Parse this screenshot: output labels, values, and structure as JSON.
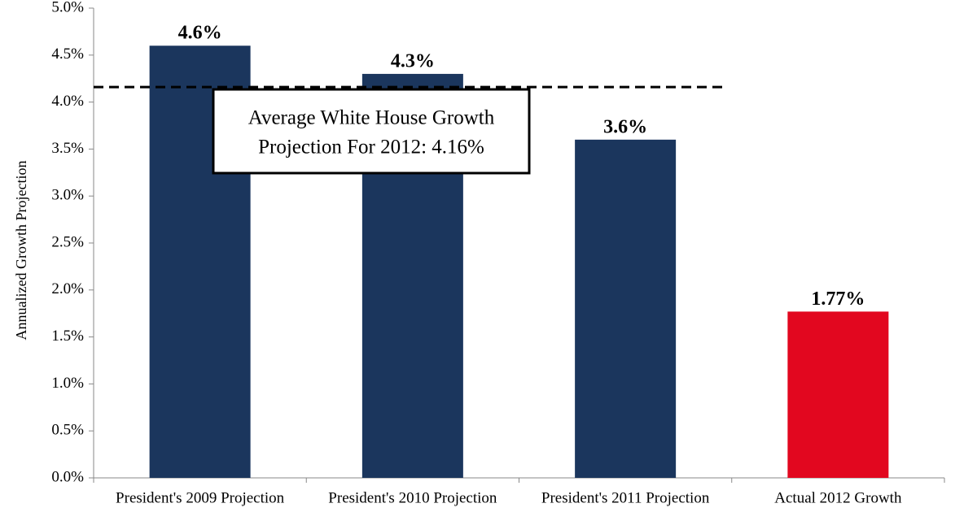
{
  "chart_data": {
    "type": "bar",
    "y_axis_label": "Annualized Growth Projection",
    "categories": [
      "President's 2009 Projection",
      "President's 2010 Projection",
      "President's 2011 Projection",
      "Actual 2012 Growth"
    ],
    "values": [
      4.6,
      4.3,
      3.6,
      1.77
    ],
    "value_labels": [
      "4.6%",
      "4.3%",
      "3.6%",
      "1.77%"
    ],
    "colors": [
      "#1b365d",
      "#1b365d",
      "#1b365d",
      "#e2071f"
    ],
    "ylim": [
      0,
      5
    ],
    "yticks": [
      {
        "value": 0,
        "label": "0.0%"
      },
      {
        "value": 0.5,
        "label": "0.5%"
      },
      {
        "value": 1,
        "label": "1.0%"
      },
      {
        "value": 1.5,
        "label": "1.5%"
      },
      {
        "value": 2,
        "label": "2.0%"
      },
      {
        "value": 2.5,
        "label": "2.5%"
      },
      {
        "value": 3,
        "label": "3.0%"
      },
      {
        "value": 3.5,
        "label": "3.5%"
      },
      {
        "value": 4,
        "label": "4.0%"
      },
      {
        "value": 4.5,
        "label": "4.5%"
      },
      {
        "value": 5,
        "label": "5.0%"
      }
    ],
    "reference_line": {
      "value": 4.16,
      "label_lines": [
        "Average White House Growth",
        "Projection For 2012: 4.16%"
      ]
    }
  }
}
